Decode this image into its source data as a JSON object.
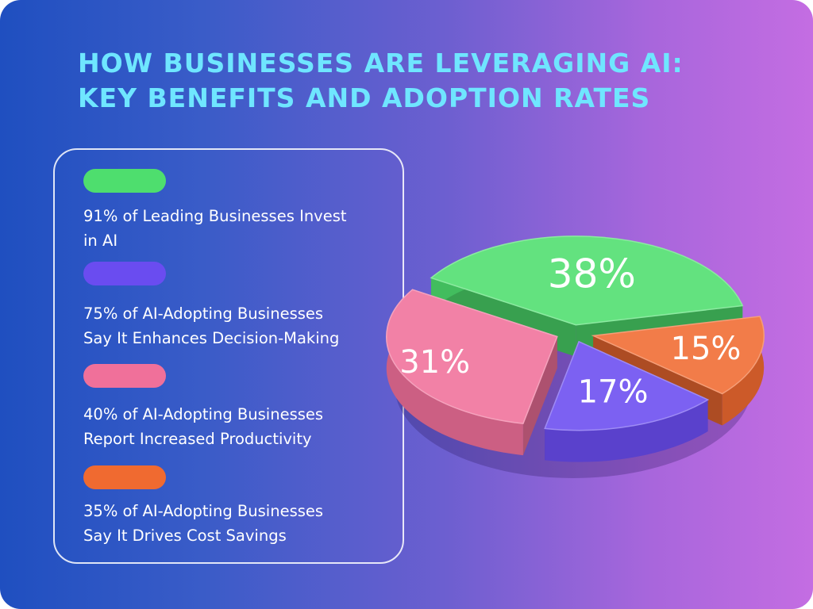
{
  "title": {
    "line1": "HOW BUSINESSES ARE LEVERAGING AI:",
    "line2": "KEY BENEFITS AND ADOPTION RATES"
  },
  "legend": [
    {
      "line1": "91% of Leading Businesses Invest",
      "line2": "in AI",
      "color": "#4ede6e"
    },
    {
      "line1": "75% of AI-Adopting Businesses",
      "line2": "Say It Enhances Decision-Making",
      "color": "#6a4cf0"
    },
    {
      "line1": "40% of AI-Adopting Businesses",
      "line2": "Report Increased Productivity",
      "color": "#f0709a"
    },
    {
      "line1": "35% of AI-Adopting Businesses",
      "line2": "Say It Drives Cost Savings",
      "color": "#f06a30"
    }
  ],
  "chart_data": {
    "type": "pie",
    "title": "",
    "slices": [
      {
        "label": "38%",
        "value": 38,
        "color": "#4ede6e"
      },
      {
        "label": "15%",
        "value": 15,
        "color": "#f06a30"
      },
      {
        "label": "17%",
        "value": 17,
        "color": "#6a4cf0"
      },
      {
        "label": "31%",
        "value": 31,
        "color": "#f0709a"
      }
    ]
  }
}
